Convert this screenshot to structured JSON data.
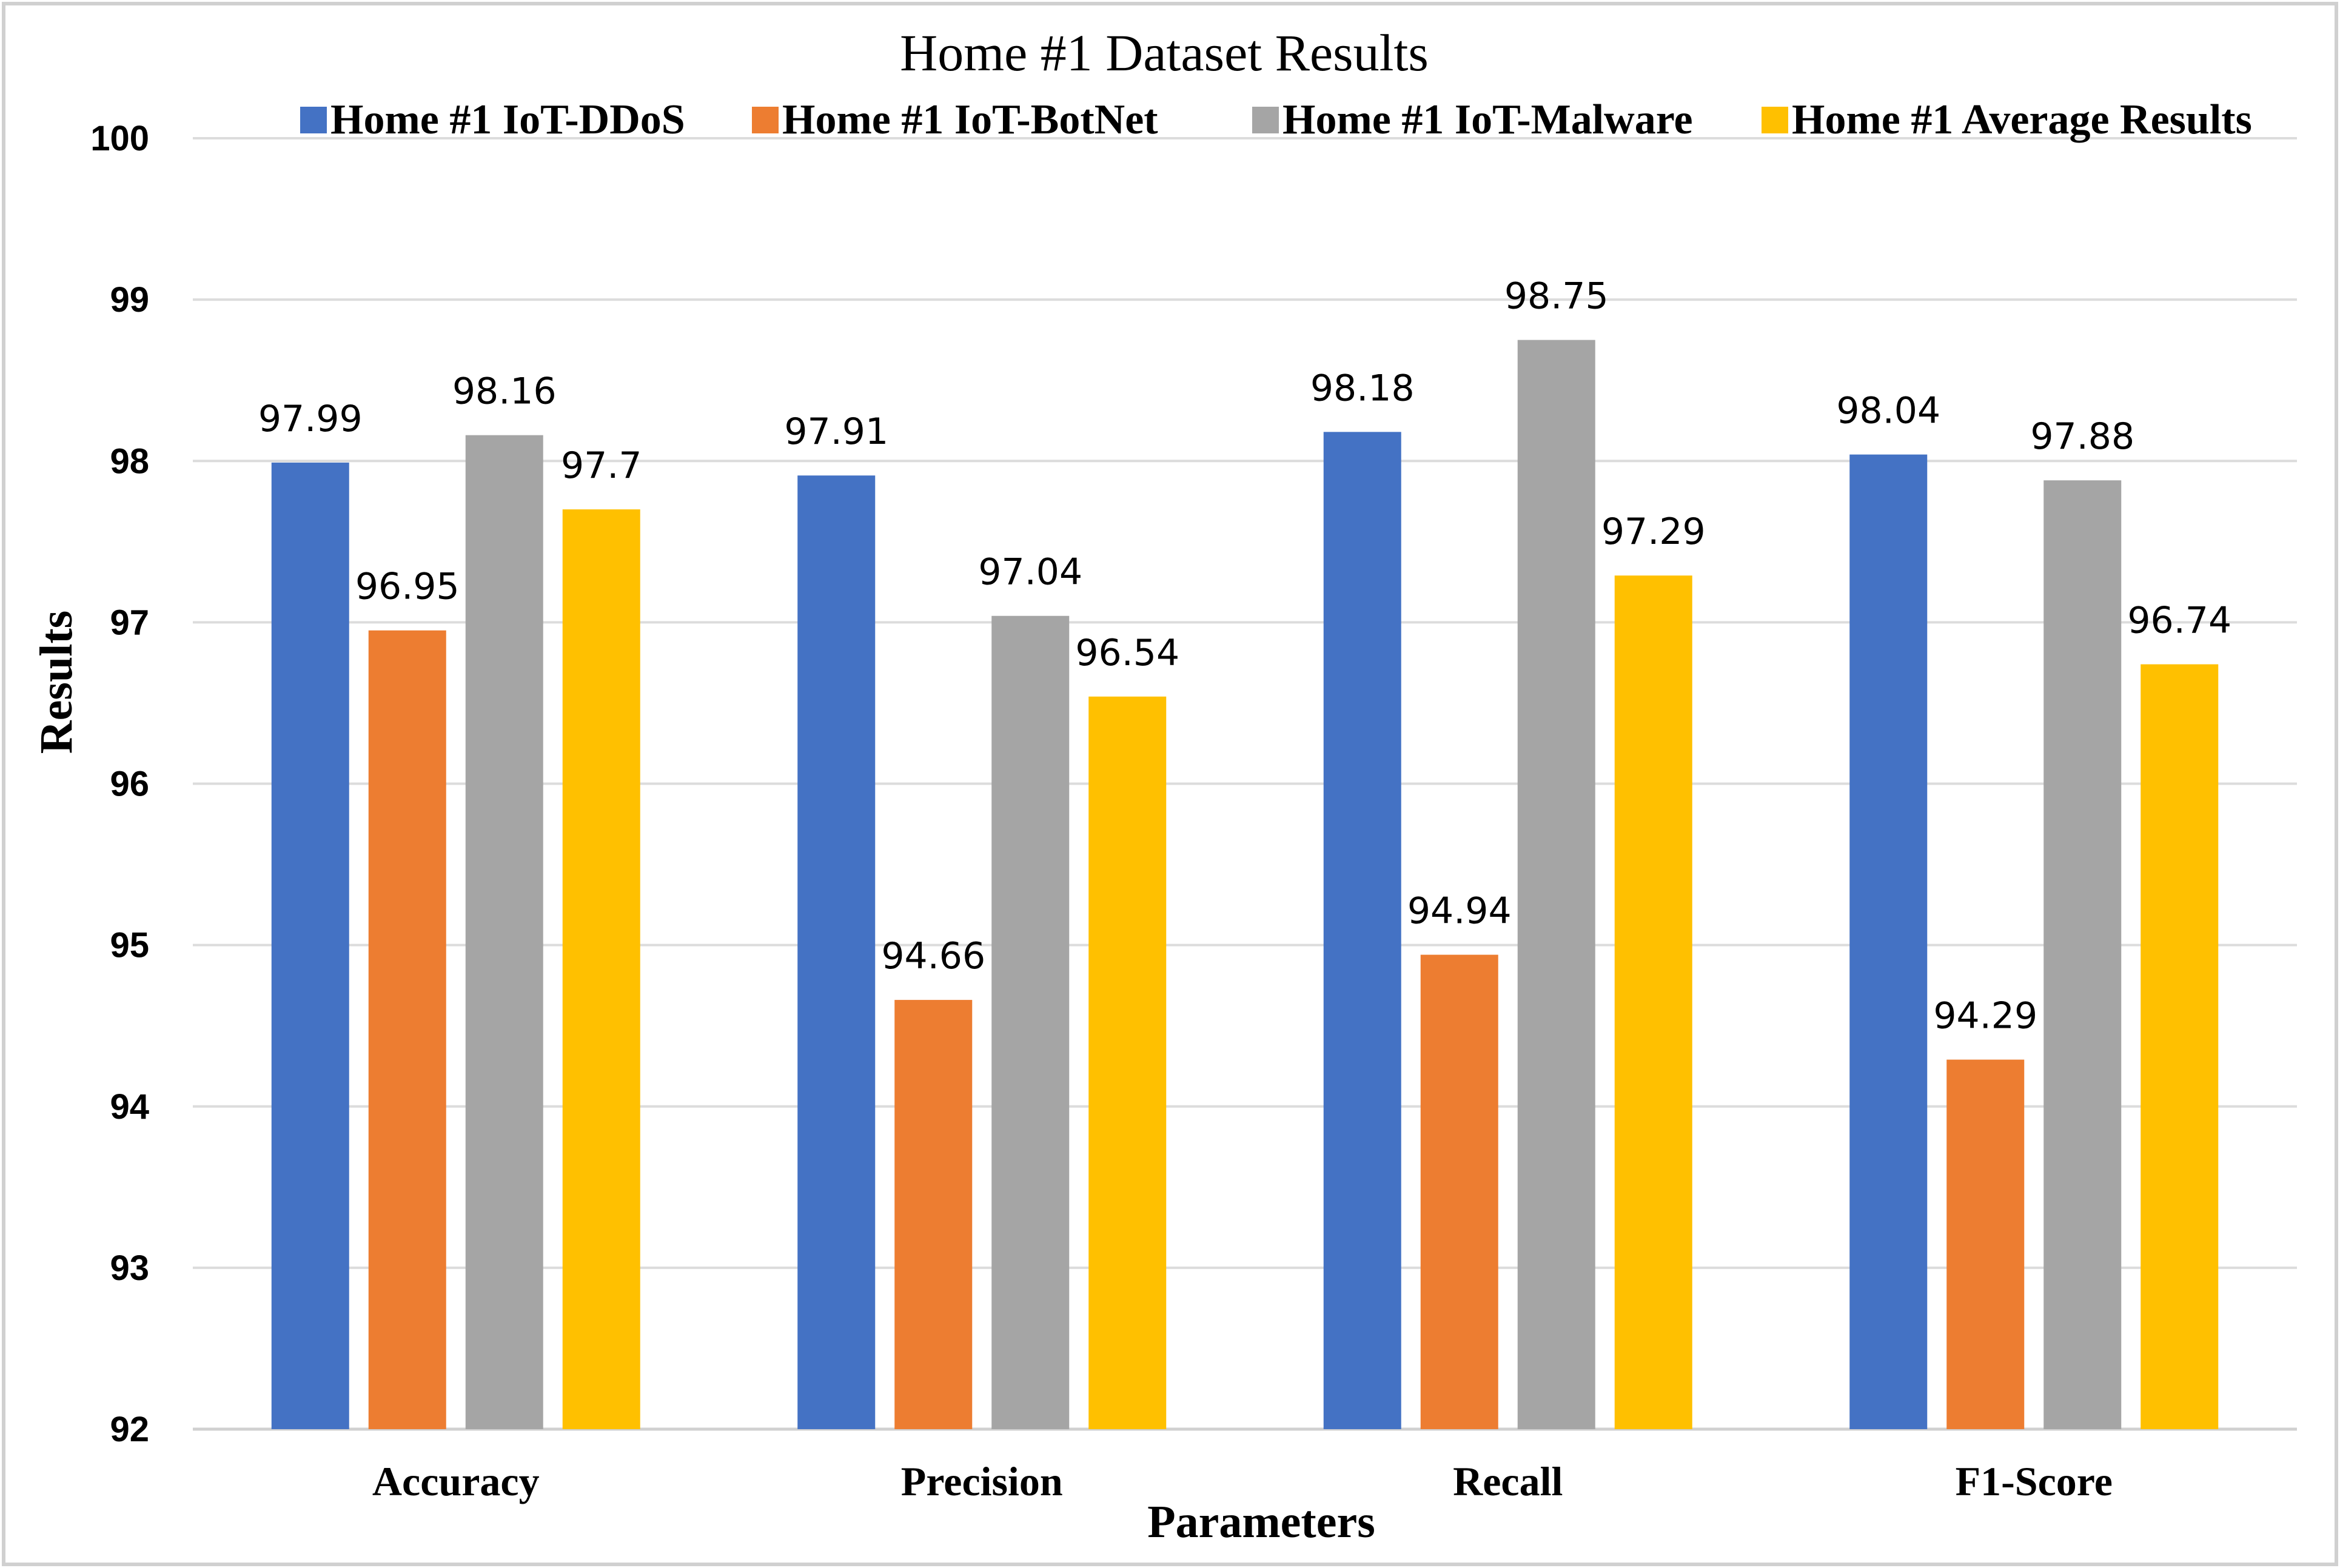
{
  "chart_data": {
    "type": "bar",
    "title": "Home #1 Dataset Results",
    "xlabel": "Parameters",
    "ylabel": "Results",
    "categories": [
      "Accuracy",
      "Precision",
      "Recall",
      "F1-Score"
    ],
    "ylim": [
      92,
      100
    ],
    "yticks": [
      "92",
      "93",
      "94",
      "95",
      "96",
      "97",
      "98",
      "99",
      "100"
    ],
    "grid": true,
    "legend_position": "top",
    "series": [
      {
        "name": "Home #1 IoT-DDoS",
        "color": "#4472C4",
        "values": [
          97.99,
          97.91,
          98.18,
          98.04
        ],
        "labels": [
          "97.99",
          "97.91",
          "98.18",
          "98.04"
        ]
      },
      {
        "name": "Home #1 IoT-BotNet",
        "color": "#ED7D31",
        "values": [
          96.95,
          94.66,
          94.94,
          94.29
        ],
        "labels": [
          "96.95",
          "94.66",
          "94.94",
          "94.29"
        ]
      },
      {
        "name": "Home #1 IoT-Malware",
        "color": "#A5A5A5",
        "values": [
          98.16,
          97.04,
          98.75,
          97.88
        ],
        "labels": [
          "98.16",
          "97.04",
          "98.75",
          "97.88"
        ]
      },
      {
        "name": "Home #1 Average Results",
        "color": "#FFC000",
        "values": [
          97.7,
          96.54,
          97.29,
          96.74
        ],
        "labels": [
          "97.7",
          "96.54",
          "97.29",
          "96.74"
        ]
      }
    ]
  }
}
